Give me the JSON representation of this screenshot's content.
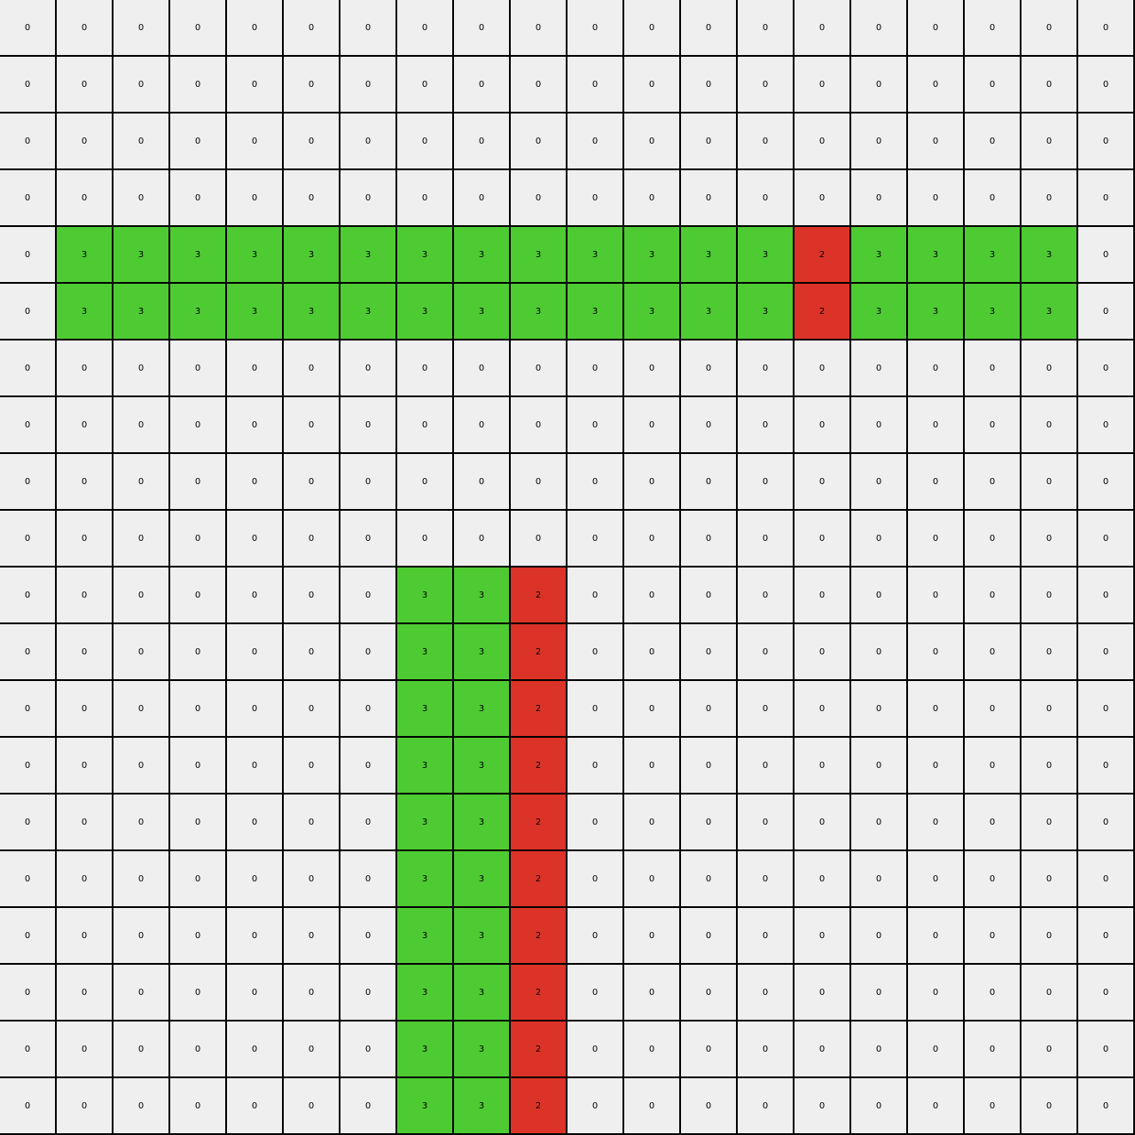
{
  "palette": {
    "0": "#efefef",
    "2": "#dc3328",
    "3": "#4ecb32"
  },
  "grid": [
    [
      "0",
      "0",
      "0",
      "0",
      "0",
      "0",
      "0",
      "0",
      "0",
      "0",
      "0",
      "0",
      "0",
      "0",
      "0",
      "0",
      "0",
      "0",
      "0",
      "0"
    ],
    [
      "0",
      "0",
      "0",
      "0",
      "0",
      "0",
      "0",
      "0",
      "0",
      "0",
      "0",
      "0",
      "0",
      "0",
      "0",
      "0",
      "0",
      "0",
      "0",
      "0"
    ],
    [
      "0",
      "0",
      "0",
      "0",
      "0",
      "0",
      "0",
      "0",
      "0",
      "0",
      "0",
      "0",
      "0",
      "0",
      "0",
      "0",
      "0",
      "0",
      "0",
      "0"
    ],
    [
      "0",
      "0",
      "0",
      "0",
      "0",
      "0",
      "0",
      "0",
      "0",
      "0",
      "0",
      "0",
      "0",
      "0",
      "0",
      "0",
      "0",
      "0",
      "0",
      "0"
    ],
    [
      "0",
      "3",
      "3",
      "3",
      "3",
      "3",
      "3",
      "3",
      "3",
      "3",
      "3",
      "3",
      "3",
      "3",
      "2",
      "3",
      "3",
      "3",
      "3",
      "0"
    ],
    [
      "0",
      "3",
      "3",
      "3",
      "3",
      "3",
      "3",
      "3",
      "3",
      "3",
      "3",
      "3",
      "3",
      "3",
      "2",
      "3",
      "3",
      "3",
      "3",
      "0"
    ],
    [
      "0",
      "0",
      "0",
      "0",
      "0",
      "0",
      "0",
      "0",
      "0",
      "0",
      "0",
      "0",
      "0",
      "0",
      "0",
      "0",
      "0",
      "0",
      "0",
      "0"
    ],
    [
      "0",
      "0",
      "0",
      "0",
      "0",
      "0",
      "0",
      "0",
      "0",
      "0",
      "0",
      "0",
      "0",
      "0",
      "0",
      "0",
      "0",
      "0",
      "0",
      "0"
    ],
    [
      "0",
      "0",
      "0",
      "0",
      "0",
      "0",
      "0",
      "0",
      "0",
      "0",
      "0",
      "0",
      "0",
      "0",
      "0",
      "0",
      "0",
      "0",
      "0",
      "0"
    ],
    [
      "0",
      "0",
      "0",
      "0",
      "0",
      "0",
      "0",
      "0",
      "0",
      "0",
      "0",
      "0",
      "0",
      "0",
      "0",
      "0",
      "0",
      "0",
      "0",
      "0"
    ],
    [
      "0",
      "0",
      "0",
      "0",
      "0",
      "0",
      "0",
      "3",
      "3",
      "2",
      "0",
      "0",
      "0",
      "0",
      "0",
      "0",
      "0",
      "0",
      "0",
      "0"
    ],
    [
      "0",
      "0",
      "0",
      "0",
      "0",
      "0",
      "0",
      "3",
      "3",
      "2",
      "0",
      "0",
      "0",
      "0",
      "0",
      "0",
      "0",
      "0",
      "0",
      "0"
    ],
    [
      "0",
      "0",
      "0",
      "0",
      "0",
      "0",
      "0",
      "3",
      "3",
      "2",
      "0",
      "0",
      "0",
      "0",
      "0",
      "0",
      "0",
      "0",
      "0",
      "0"
    ],
    [
      "0",
      "0",
      "0",
      "0",
      "0",
      "0",
      "0",
      "3",
      "3",
      "2",
      "0",
      "0",
      "0",
      "0",
      "0",
      "0",
      "0",
      "0",
      "0",
      "0"
    ],
    [
      "0",
      "0",
      "0",
      "0",
      "0",
      "0",
      "0",
      "3",
      "3",
      "2",
      "0",
      "0",
      "0",
      "0",
      "0",
      "0",
      "0",
      "0",
      "0",
      "0"
    ],
    [
      "0",
      "0",
      "0",
      "0",
      "0",
      "0",
      "0",
      "3",
      "3",
      "2",
      "0",
      "0",
      "0",
      "0",
      "0",
      "0",
      "0",
      "0",
      "0",
      "0"
    ],
    [
      "0",
      "0",
      "0",
      "0",
      "0",
      "0",
      "0",
      "3",
      "3",
      "2",
      "0",
      "0",
      "0",
      "0",
      "0",
      "0",
      "0",
      "0",
      "0",
      "0"
    ],
    [
      "0",
      "0",
      "0",
      "0",
      "0",
      "0",
      "0",
      "3",
      "3",
      "2",
      "0",
      "0",
      "0",
      "0",
      "0",
      "0",
      "0",
      "0",
      "0",
      "0"
    ],
    [
      "0",
      "0",
      "0",
      "0",
      "0",
      "0",
      "0",
      "3",
      "3",
      "2",
      "0",
      "0",
      "0",
      "0",
      "0",
      "0",
      "0",
      "0",
      "0",
      "0"
    ],
    [
      "0",
      "0",
      "0",
      "0",
      "0",
      "0",
      "0",
      "3",
      "3",
      "2",
      "0",
      "0",
      "0",
      "0",
      "0",
      "0",
      "0",
      "0",
      "0",
      "0"
    ]
  ]
}
